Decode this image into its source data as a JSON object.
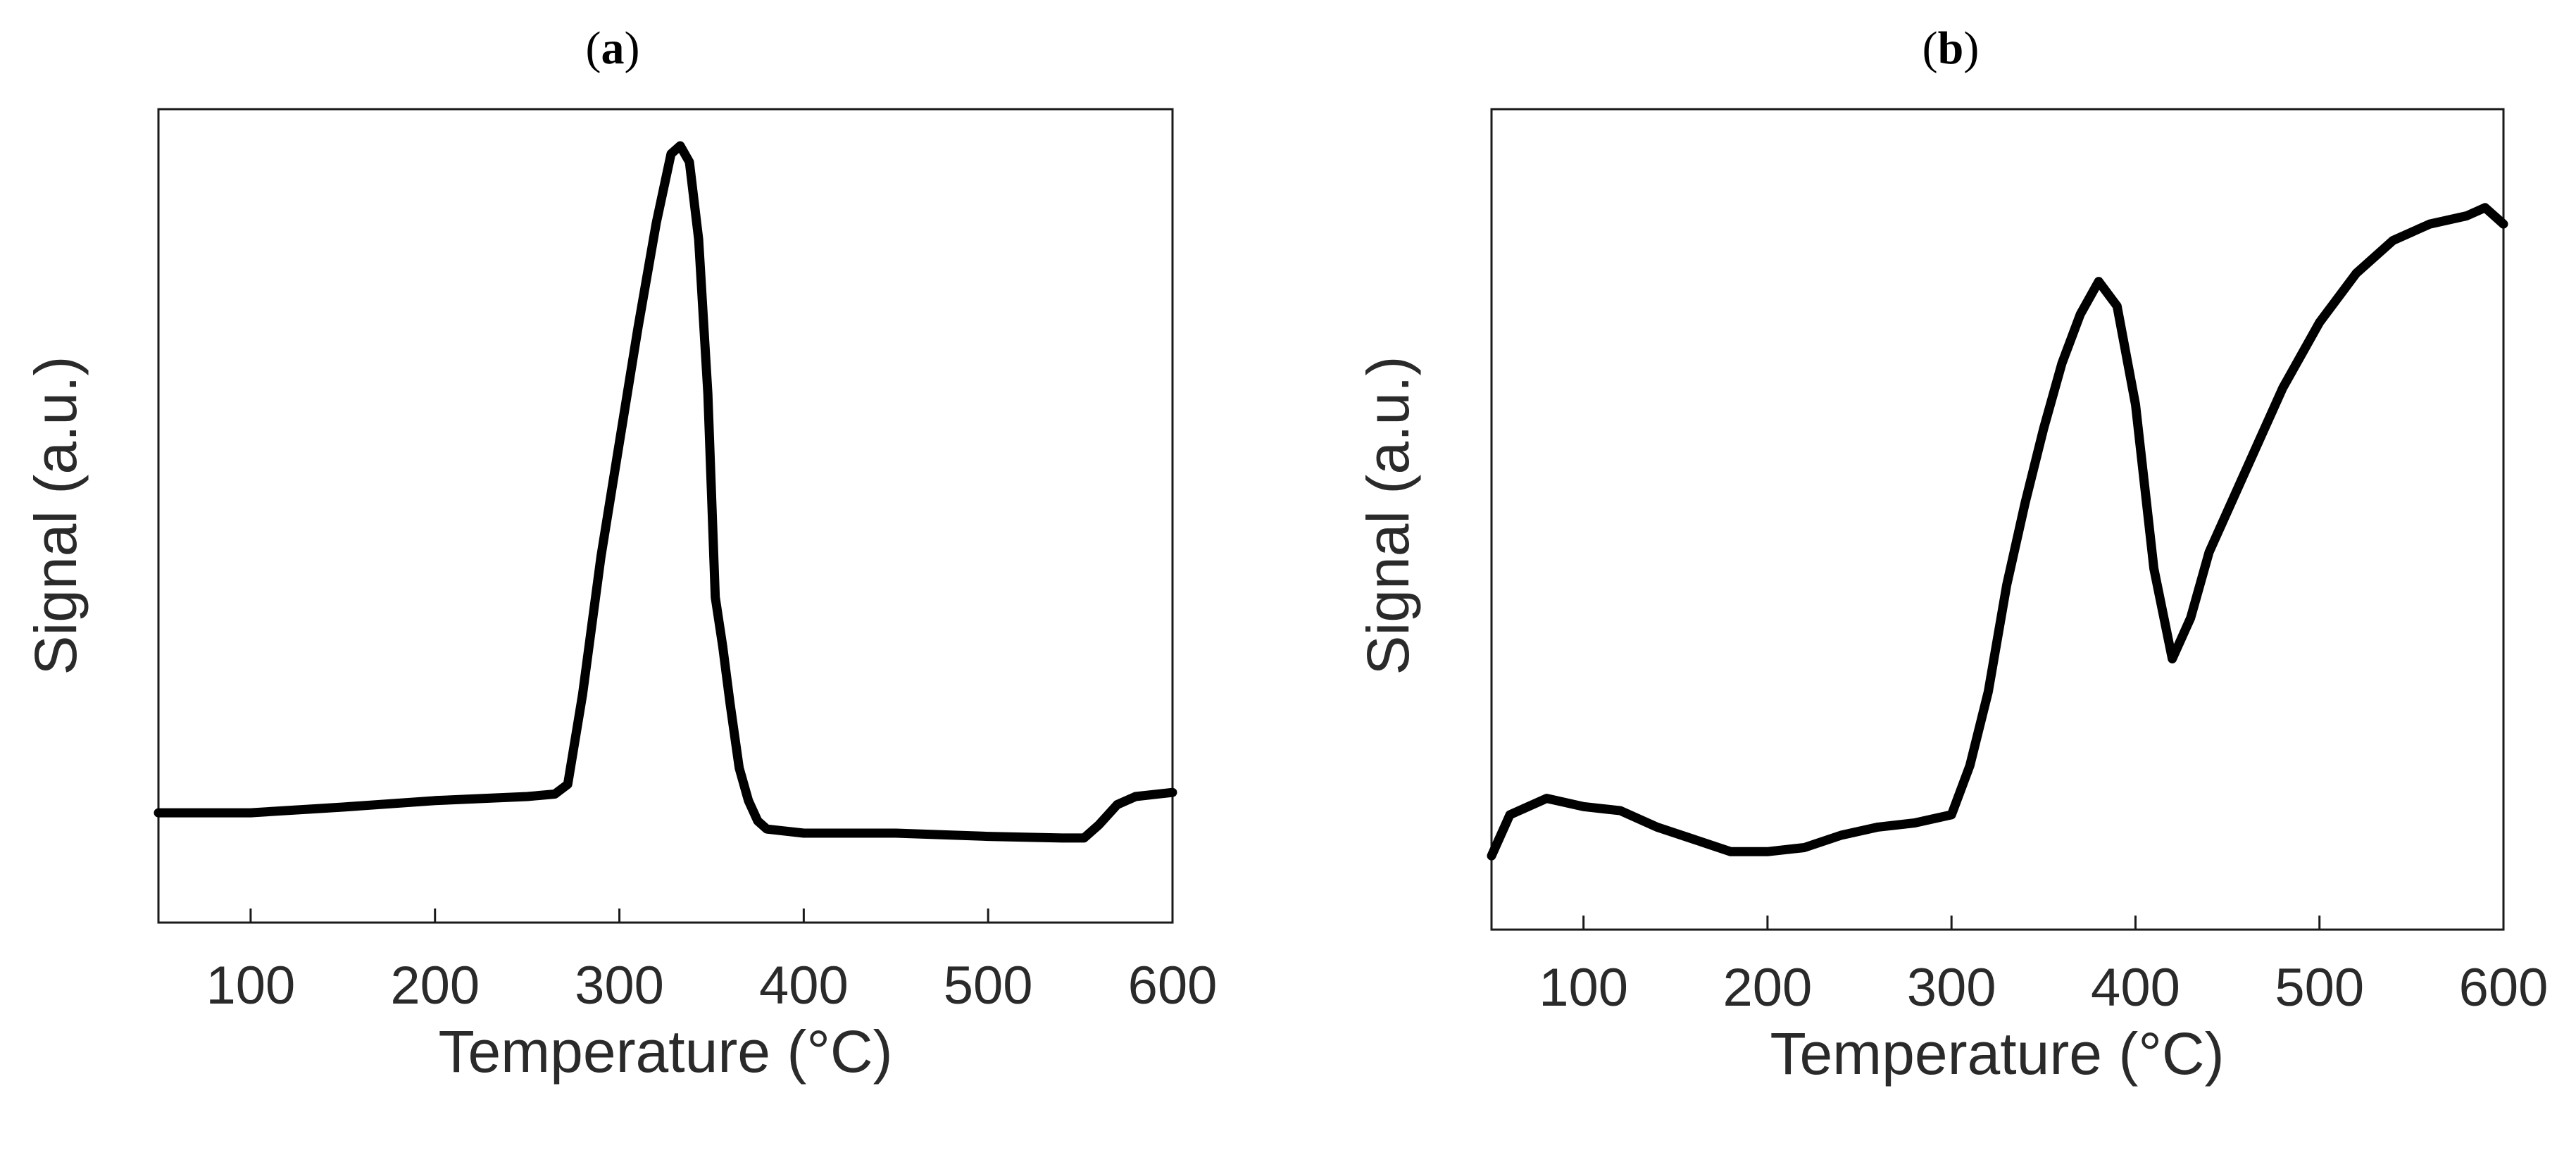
{
  "chart_data": [
    {
      "type": "line",
      "panel_label": {
        "open": "(",
        "letter": "a",
        "close": ")"
      },
      "title": "",
      "xlabel": "Temperature (°C)",
      "ylabel": "Signal (a.u.)",
      "xlim": [
        50,
        600
      ],
      "ylim": [
        0,
        1
      ],
      "x_ticks": [
        100,
        200,
        300,
        400,
        500,
        600
      ],
      "y_ticks": [],
      "grid": false,
      "legend": "none",
      "series": [
        {
          "color": "#000000",
          "x": [
            50,
            100,
            150,
            200,
            250,
            265,
            272,
            280,
            290,
            300,
            310,
            320,
            328,
            333,
            338,
            343,
            348,
            352,
            356,
            360,
            365,
            370,
            375,
            380,
            400,
            450,
            500,
            540,
            552,
            560,
            570,
            580,
            600
          ],
          "y": [
            0.135,
            0.135,
            0.142,
            0.15,
            0.155,
            0.158,
            0.17,
            0.28,
            0.45,
            0.59,
            0.73,
            0.86,
            0.945,
            0.955,
            0.935,
            0.84,
            0.65,
            0.4,
            0.34,
            0.27,
            0.19,
            0.15,
            0.125,
            0.115,
            0.11,
            0.11,
            0.106,
            0.104,
            0.104,
            0.12,
            0.145,
            0.155,
            0.16
          ]
        }
      ]
    },
    {
      "type": "line",
      "panel_label": {
        "open": "(",
        "letter": "b",
        "close": ")"
      },
      "title": "",
      "xlabel": "Temperature (°C)",
      "ylabel": "Signal (a.u.)",
      "xlim": [
        50,
        600
      ],
      "ylim": [
        0,
        1
      ],
      "x_ticks": [
        100,
        200,
        300,
        400,
        500,
        600
      ],
      "y_ticks": [],
      "grid": false,
      "legend": "none",
      "series": [
        {
          "color": "#000000",
          "x": [
            50,
            60,
            80,
            100,
            120,
            140,
            160,
            180,
            200,
            220,
            240,
            260,
            280,
            300,
            310,
            320,
            330,
            340,
            350,
            360,
            370,
            380,
            390,
            400,
            410,
            420,
            430,
            440,
            460,
            480,
            500,
            520,
            540,
            560,
            580,
            590,
            600
          ],
          "y": [
            0.09,
            0.14,
            0.16,
            0.15,
            0.145,
            0.125,
            0.11,
            0.095,
            0.095,
            0.1,
            0.115,
            0.125,
            0.13,
            0.14,
            0.2,
            0.29,
            0.42,
            0.52,
            0.61,
            0.69,
            0.75,
            0.79,
            0.76,
            0.64,
            0.44,
            0.33,
            0.38,
            0.46,
            0.56,
            0.66,
            0.74,
            0.8,
            0.84,
            0.86,
            0.87,
            0.88,
            0.86
          ]
        }
      ]
    }
  ]
}
